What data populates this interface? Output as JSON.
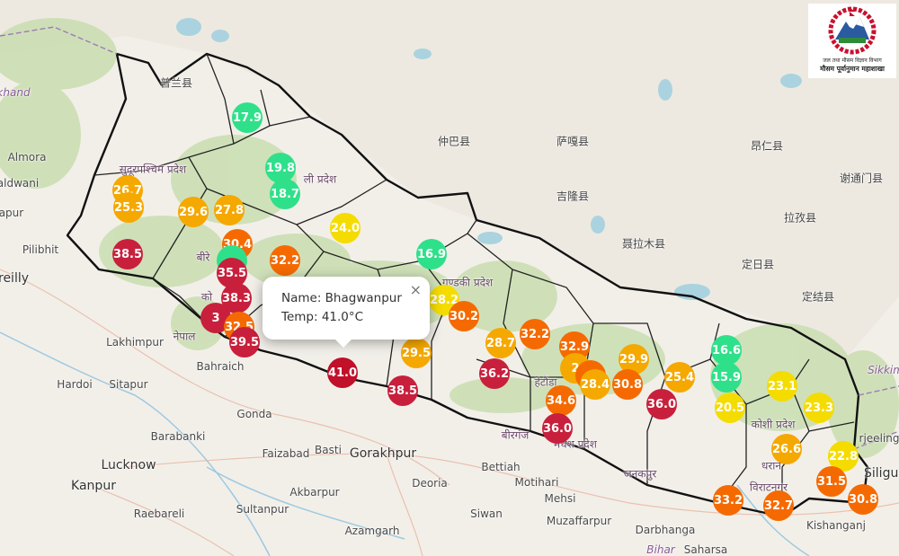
{
  "popup": {
    "name_line": "Name: Bhagwanpur",
    "temp_line": "Temp: 41.0°C",
    "close_label": "×"
  },
  "logo": {
    "line1": "जल तथा मौसम विज्ञान विभाग",
    "line2": "मौसम पूर्वानुमान महाशाखा"
  },
  "colors": {
    "green": "#2fe08a",
    "yellow": "#f4dc00",
    "amber": "#f5a800",
    "orange": "#f56a00",
    "red": "#c8203c",
    "border": "#111111"
  },
  "markers": [
    {
      "value": "17.9",
      "color": "#2fe08a"
    },
    {
      "value": "19.8",
      "color": "#2fe08a"
    },
    {
      "value": "18.7",
      "color": "#2fe08a"
    },
    {
      "value": "26.7",
      "color": "#f5a800"
    },
    {
      "value": "25.3",
      "color": "#f5a800"
    },
    {
      "value": "29.6",
      "color": "#f5a800"
    },
    {
      "value": "27.8",
      "color": "#f5a800"
    },
    {
      "value": "24.0",
      "color": "#f4dc00"
    },
    {
      "value": "38.5",
      "color": "#c8203c"
    },
    {
      "value": "30.4",
      "color": "#f56a00"
    },
    {
      "value": "",
      "color": "#2fe08a"
    },
    {
      "value": "35.5",
      "color": "#c8203c"
    },
    {
      "value": "32.2",
      "color": "#f56a00"
    },
    {
      "value": "16.9",
      "color": "#2fe08a"
    },
    {
      "value": "38.3",
      "color": "#c8203c"
    },
    {
      "value": "3",
      "color": "#c8203c"
    },
    {
      "value": "32.5",
      "color": "#f56a00"
    },
    {
      "value": "39.5",
      "color": "#c8203c"
    },
    {
      "value": "28.2",
      "color": "#f4dc00"
    },
    {
      "value": "30.2",
      "color": "#f56a00"
    },
    {
      "value": "41.0",
      "color": "#c0102a"
    },
    {
      "value": "38.5",
      "color": "#c8203c"
    },
    {
      "value": "29.5",
      "color": "#f5a800"
    },
    {
      "value": "32.2",
      "color": "#f56a00"
    },
    {
      "value": "28.7",
      "color": "#f5a800"
    },
    {
      "value": "36.2",
      "color": "#c8203c"
    },
    {
      "value": "32.9",
      "color": "#f56a00"
    },
    {
      "value": "29.9",
      "color": "#f5a800"
    },
    {
      "value": "2",
      "color": "#f5a800"
    },
    {
      "value": "",
      "color": "#f56a00"
    },
    {
      "value": "30.8",
      "color": "#f56a00"
    },
    {
      "value": "28.4",
      "color": "#f5a800"
    },
    {
      "value": "34.6",
      "color": "#f56a00"
    },
    {
      "value": "36.0",
      "color": "#c8203c"
    },
    {
      "value": "36.0",
      "color": "#c8203c"
    },
    {
      "value": "25.4",
      "color": "#f5a800"
    },
    {
      "value": "16.6",
      "color": "#2fe08a"
    },
    {
      "value": "15.9",
      "color": "#2fe08a"
    },
    {
      "value": "23.1",
      "color": "#f4dc00"
    },
    {
      "value": "20.5",
      "color": "#f4dc00"
    },
    {
      "value": "23.3",
      "color": "#f4dc00"
    },
    {
      "value": "26.6",
      "color": "#f5a800"
    },
    {
      "value": "22.8",
      "color": "#f4dc00"
    },
    {
      "value": "31.5",
      "color": "#f56a00"
    },
    {
      "value": "30.8",
      "color": "#f56a00"
    },
    {
      "value": "33.2",
      "color": "#f56a00"
    },
    {
      "value": "32.7",
      "color": "#f56a00"
    }
  ],
  "places": [
    {
      "text": "Lakhimpur"
    },
    {
      "text": "Bahraich"
    },
    {
      "text": "Hardoi"
    },
    {
      "text": "Sitapur"
    },
    {
      "text": "Gonda"
    },
    {
      "text": "Barabanki"
    },
    {
      "text": "Faizabad"
    },
    {
      "text": "Basti"
    },
    {
      "text": "Gorakhpur"
    },
    {
      "text": "Lucknow"
    },
    {
      "text": "Kanpur"
    },
    {
      "text": "Akbarpur"
    },
    {
      "text": "Deoria"
    },
    {
      "text": "Bettiah"
    },
    {
      "text": "Motihari"
    },
    {
      "text": "Mehsi"
    },
    {
      "text": "Raebareli"
    },
    {
      "text": "Sultanpur"
    },
    {
      "text": "Siwan"
    },
    {
      "text": "Azamgarh"
    },
    {
      "text": "Muzaffarpur"
    },
    {
      "text": "Darbhanga"
    },
    {
      "text": "Saharsa"
    },
    {
      "text": "Kishanganj"
    },
    {
      "text": "Siliguri"
    },
    {
      "text": "rjeeling"
    },
    {
      "text": "Sikkim"
    },
    {
      "text": "Pilibhit"
    },
    {
      "text": "reilly"
    },
    {
      "text": "Almora"
    },
    {
      "text": "aldwani"
    },
    {
      "text": "rapur"
    },
    {
      "text": "khand"
    },
    {
      "text": "仲巴县"
    },
    {
      "text": "萨嘎县"
    },
    {
      "text": "吉隆县"
    },
    {
      "text": "聂拉木县"
    },
    {
      "text": "定日县"
    },
    {
      "text": "昂仁县"
    },
    {
      "text": "谢通门县"
    },
    {
      "text": "拉孜县"
    },
    {
      "text": "定结县"
    },
    {
      "text": "普兰县"
    },
    {
      "text": "गण्डकी प्रदेश"
    },
    {
      "text": "ली प्रदेश"
    },
    {
      "text": "कोशी प्रदेश"
    },
    {
      "text": "मधेश प्रदेश"
    },
    {
      "text": "हेटौंडा"
    },
    {
      "text": "बीरगंज"
    },
    {
      "text": "धरान"
    },
    {
      "text": "विराटनगर"
    },
    {
      "text": "जनकपुर"
    },
    {
      "text": "नेपाल"
    },
    {
      "text": "बीरे"
    },
    {
      "text": "को"
    },
    {
      "text": "सुदूरपश्चिम प्रदेश"
    },
    {
      "text": "Bihar"
    }
  ]
}
